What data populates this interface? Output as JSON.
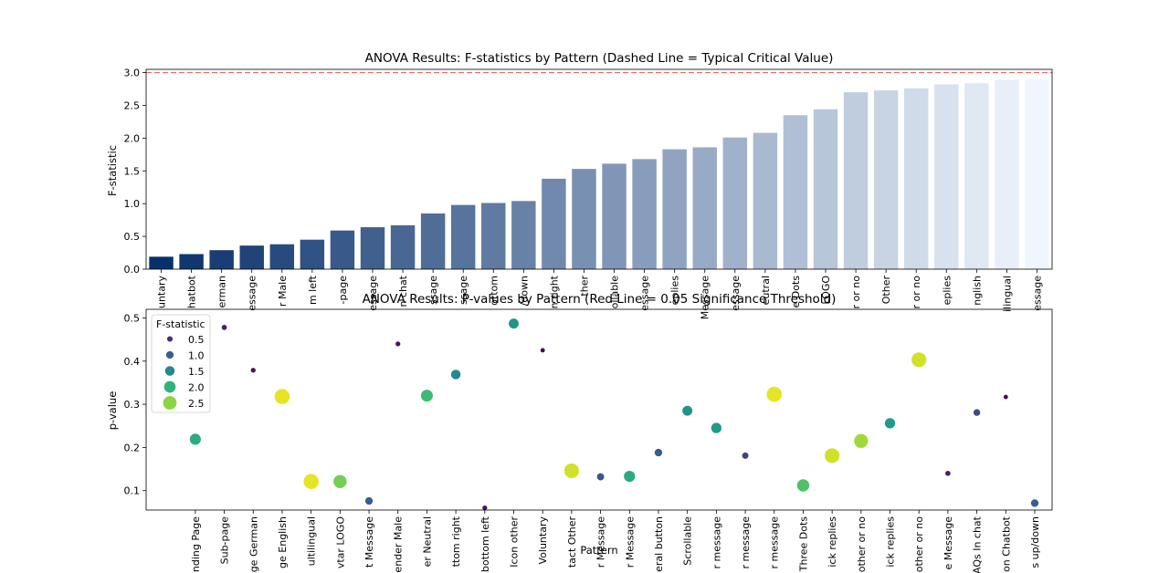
{
  "colors": {
    "critical_line": "#e05a4e",
    "axis": "#000000",
    "bar_dark": "#08306b",
    "bar_light": "#f0f6fd"
  },
  "chart_data": [
    {
      "type": "bar",
      "title": "ANOVA Results: F-statistics by Pattern (Dashed Line = Typical Critical Value)",
      "xlabel": "",
      "ylabel": "F-statistic",
      "ylim": [
        0,
        3.05
      ],
      "yticks": [
        "0.0",
        "0.5",
        "1.0",
        "1.5",
        "2.0",
        "2.5",
        "3.0"
      ],
      "critical_value": 3.0,
      "categories": [
        "untary",
        "hatbot",
        "erman",
        "essage",
        "r Male",
        "m left",
        "-page",
        "essage",
        "n chat",
        "ssage",
        "ssage",
        "ottom",
        "/down",
        "n right",
        "ther",
        "ollable",
        "essage",
        "eplies",
        "Message",
        "essage",
        "eutral",
        "e Dots",
        "LOGO",
        "r or no",
        "Other",
        "r or no",
        "eplies",
        "nglish",
        "ilingual",
        "essage"
      ],
      "values": [
        0.19,
        0.23,
        0.29,
        0.36,
        0.38,
        0.45,
        0.59,
        0.64,
        0.67,
        0.85,
        0.98,
        1.01,
        1.04,
        1.38,
        1.53,
        1.61,
        1.68,
        1.83,
        1.86,
        2.01,
        2.08,
        2.35,
        2.44,
        2.7,
        2.73,
        2.76,
        2.82,
        2.84,
        2.89,
        2.9
      ]
    },
    {
      "type": "scatter",
      "title": "ANOVA Results: P-values by Pattern (Red Line = 0.05 Significance Threshold)",
      "xlabel": "Pattern",
      "ylabel": "p-value",
      "ylim": [
        0.055,
        0.52
      ],
      "yticks": [
        "0.1",
        "0.2",
        "0.3",
        "0.4",
        "0.5"
      ],
      "legend_title": "F-statistic",
      "legend_entries": [
        "0.5",
        "1.0",
        "1.5",
        "2.0",
        "2.5"
      ],
      "legend_position": "upper-left",
      "categories": [
        "nding Page",
        "Sub-page",
        "ge German",
        "ge English",
        "ultilingual",
        "vtar LOGO",
        "t Message",
        "ender Male",
        "er Neutral",
        "ttom right",
        "bottom left",
        "Icon other",
        "Voluntary",
        "tact Other",
        "r Message",
        "r Message",
        "eral button",
        "Scrollable",
        "r message",
        "r message",
        "r message",
        "Three Dots",
        "ick replies",
        "other or no",
        "ick replies",
        "other or no",
        "e Message",
        "AQs In chat",
        "on Chatbot",
        "s up/down"
      ],
      "p_values": [
        0.219,
        0.478,
        0.379,
        0.318,
        0.121,
        0.121,
        0.076,
        0.44,
        0.32,
        0.369,
        0.06,
        0.487,
        0.425,
        0.146,
        0.132,
        0.133,
        0.188,
        0.285,
        0.245,
        0.181,
        0.323,
        0.112,
        0.181,
        0.215,
        0.256,
        0.403,
        0.14,
        0.281,
        0.317,
        0.071
      ],
      "f_values": [
        1.9,
        0.4,
        0.3,
        2.9,
        2.9,
        2.4,
        1.0,
        0.3,
        2.1,
        1.5,
        0.3,
        1.6,
        0.2,
        2.8,
        0.9,
        1.9,
        1.0,
        1.6,
        1.7,
        0.7,
        2.9,
        2.2,
        2.8,
        2.6,
        1.7,
        2.8,
        0.4,
        0.8,
        0.2,
        1.0
      ]
    }
  ]
}
